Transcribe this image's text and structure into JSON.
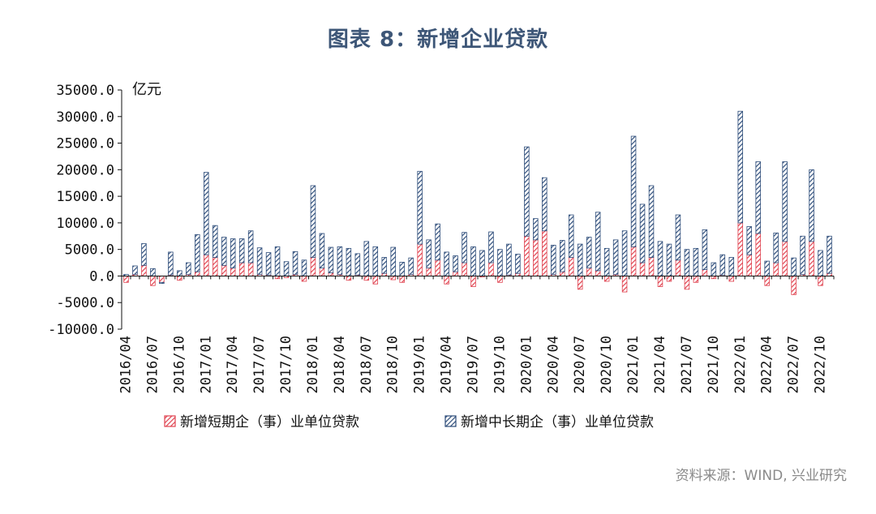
{
  "title": "图表 8：新增企业贷款",
  "source": "资料来源：WIND, 兴业研究",
  "colors": {
    "short": "#e0424f",
    "long": "#2e4d7a",
    "axis": "#111111"
  },
  "chart_data": {
    "type": "bar",
    "stacked": true,
    "unit_label": "亿元",
    "ylim": [
      -10000,
      35000
    ],
    "yticks": [
      "35000.0",
      "30000.0",
      "25000.0",
      "20000.0",
      "15000.0",
      "10000.0",
      "5000.0",
      "0.0",
      "-5000.0",
      "-10000.0"
    ],
    "ytick_values": [
      35000,
      30000,
      25000,
      20000,
      15000,
      10000,
      5000,
      0,
      -5000,
      -10000
    ],
    "categories": [
      "2016/04",
      "2016/05",
      "2016/06",
      "2016/07",
      "2016/08",
      "2016/09",
      "2016/10",
      "2016/11",
      "2016/12",
      "2017/01",
      "2017/02",
      "2017/03",
      "2017/04",
      "2017/05",
      "2017/06",
      "2017/07",
      "2017/08",
      "2017/09",
      "2017/10",
      "2017/11",
      "2017/12",
      "2018/01",
      "2018/02",
      "2018/03",
      "2018/04",
      "2018/05",
      "2018/06",
      "2018/07",
      "2018/08",
      "2018/09",
      "2018/10",
      "2018/11",
      "2018/12",
      "2019/01",
      "2019/02",
      "2019/03",
      "2019/04",
      "2019/05",
      "2019/06",
      "2019/07",
      "2019/08",
      "2019/09",
      "2019/10",
      "2019/11",
      "2019/12",
      "2020/01",
      "2020/02",
      "2020/03",
      "2020/04",
      "2020/05",
      "2020/06",
      "2020/07",
      "2020/08",
      "2020/09",
      "2020/10",
      "2020/11",
      "2020/12",
      "2021/01",
      "2021/02",
      "2021/03",
      "2021/04",
      "2021/05",
      "2021/06",
      "2021/07",
      "2021/08",
      "2021/09",
      "2021/10",
      "2021/11",
      "2021/12",
      "2022/01",
      "2022/02",
      "2022/03",
      "2022/04",
      "2022/05",
      "2022/06",
      "2022/07",
      "2022/08",
      "2022/09",
      "2022/10",
      "2022/11"
    ],
    "xtick_labels": [
      "2016/04",
      "2016/07",
      "2016/10",
      "2017/01",
      "2017/04",
      "2017/07",
      "2017/10",
      "2018/01",
      "2018/04",
      "2018/07",
      "2018/10",
      "2019/01",
      "2019/04",
      "2019/07",
      "2019/10",
      "2020/01",
      "2020/04",
      "2020/07",
      "2020/10",
      "2021/01",
      "2021/04",
      "2021/07",
      "2021/10",
      "2022/01",
      "2022/04",
      "2022/07",
      "2022/10"
    ],
    "series": [
      {
        "name": "新增短期企（事）业单位贷款",
        "values": [
          -1200,
          300,
          2000,
          -1800,
          -1200,
          200,
          -800,
          300,
          800,
          4000,
          3500,
          2000,
          1500,
          2500,
          2500,
          300,
          200,
          -500,
          -300,
          300,
          -1000,
          3500,
          1500,
          600,
          300,
          -800,
          200,
          -800,
          -1500,
          500,
          -700,
          -1200,
          300,
          6000,
          1500,
          3000,
          -1500,
          800,
          2500,
          -2000,
          -200,
          2500,
          -1200,
          200,
          500,
          7500,
          6800,
          8500,
          300,
          800,
          3500,
          -2500,
          1500,
          1000,
          -1000,
          300,
          -3000,
          5500,
          2500,
          3500,
          -2000,
          -1000,
          3000,
          -2500,
          -1200,
          1200,
          -500,
          200,
          -1000,
          10000,
          4000,
          8000,
          -1800,
          2500,
          6500,
          -3500,
          300,
          6500,
          -1800,
          500
        ]
      },
      {
        "name": "新增中长期企（事）业单位贷款",
        "values": [
          300,
          1600,
          4100,
          1400,
          -200,
          4300,
          1000,
          2200,
          7000,
          15500,
          6000,
          5300,
          5500,
          4500,
          6000,
          5000,
          4200,
          5500,
          2700,
          4300,
          3000,
          13500,
          6500,
          4800,
          5200,
          5200,
          4000,
          6500,
          5500,
          3000,
          5400,
          2600,
          3100,
          13700,
          5300,
          6800,
          4500,
          3000,
          5700,
          5500,
          4800,
          5800,
          5000,
          5800,
          3600,
          16800,
          4000,
          10000,
          5500,
          5900,
          8000,
          6000,
          5800,
          11000,
          5200,
          6500,
          8500,
          20800,
          11000,
          13500,
          6500,
          6000,
          8500,
          5000,
          5200,
          7500,
          2500,
          3800,
          3500,
          21000,
          5300,
          13500,
          2800,
          5600,
          15000,
          3400,
          7200,
          13500,
          4800,
          7000
        ]
      }
    ]
  }
}
